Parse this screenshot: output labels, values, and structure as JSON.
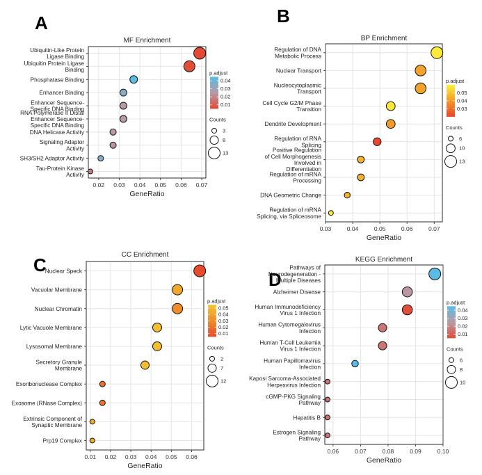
{
  "chart_data": [
    {
      "panel": "A",
      "type": "scatter",
      "title": "MF Enrichment",
      "xlabel": "GeneRatio",
      "ylabel": "",
      "xlim": [
        0.015,
        0.072
      ],
      "xticks": [
        0.02,
        0.03,
        0.04,
        0.05,
        0.06,
        0.07
      ],
      "xtick_labels": [
        "0.02",
        "0.03",
        "0.04",
        "0.05",
        "0.06",
        "0.07"
      ],
      "color_scale": {
        "name": "p.adjust",
        "min": 0.005,
        "max": 0.045,
        "low_color": "#e24a33",
        "mid_color": "#b89aa6",
        "high_color": "#55bde6",
        "ticks": [
          0.04,
          0.03,
          0.02,
          0.01
        ],
        "tick_labels": [
          "0.04",
          "0.03",
          "0.02",
          "0.01"
        ]
      },
      "size_scale": {
        "name": "Counts",
        "values": [
          3,
          8,
          13
        ],
        "labels": [
          "3",
          "8",
          "13"
        ]
      },
      "points": [
        {
          "label": [
            "Ubiquitin-Like Protein",
            "Ligase Binding"
          ],
          "x": 0.069,
          "count": 13,
          "p": 0.005
        },
        {
          "label": [
            "Ubiquitin Protein Ligase",
            "Binding"
          ],
          "x": 0.064,
          "count": 12,
          "p": 0.006
        },
        {
          "label": [
            "Phosphatase Binding"
          ],
          "x": 0.037,
          "count": 7,
          "p": 0.045
        },
        {
          "label": [
            "Enhancer Binding"
          ],
          "x": 0.032,
          "count": 6,
          "p": 0.035
        },
        {
          "label": [
            "Enhancer Sequence-",
            "Specific DNA Binding"
          ],
          "x": 0.032,
          "count": 6,
          "p": 0.025
        },
        {
          "label": [
            "RNA Polymerase II Distal",
            "Enhancer Sequence-",
            "Specific DNA Binding"
          ],
          "x": 0.032,
          "count": 6,
          "p": 0.025
        },
        {
          "label": [
            "DNA Helicase Activity"
          ],
          "x": 0.027,
          "count": 5,
          "p": 0.025
        },
        {
          "label": [
            "Signaling Adaptor",
            "Activity"
          ],
          "x": 0.027,
          "count": 5,
          "p": 0.024
        },
        {
          "label": [
            "SH3/SH2 Adaptor Activity"
          ],
          "x": 0.021,
          "count": 4,
          "p": 0.035
        },
        {
          "label": [
            "Tau-Protein Kinase",
            "Activity"
          ],
          "x": 0.016,
          "count": 3,
          "p": 0.018
        }
      ]
    },
    {
      "panel": "B",
      "type": "scatter",
      "title": "BP Enrichment",
      "xlabel": "GeneRatio",
      "ylabel": "",
      "xlim": [
        0.03,
        0.073
      ],
      "xticks": [
        0.03,
        0.04,
        0.05,
        0.06,
        0.07
      ],
      "xtick_labels": [
        "0.03",
        "0.04",
        "0.05",
        "0.06",
        "0.07"
      ],
      "color_scale": {
        "name": "p.adjust",
        "min": 0.02,
        "max": 0.06,
        "low_color": "#e8442c",
        "mid_color": "#f29a2a",
        "high_color": "#fff13a",
        "ticks": [
          0.05,
          0.04,
          0.03
        ],
        "tick_labels": [
          "0.05",
          "0.04",
          "0.03"
        ]
      },
      "size_scale": {
        "name": "Counts",
        "values": [
          6,
          10,
          13
        ],
        "labels": [
          "6",
          "10",
          "13"
        ]
      },
      "points": [
        {
          "label": [
            "Regulation of DNA",
            "Metabolic Process"
          ],
          "x": 0.071,
          "count": 13,
          "p": 0.058
        },
        {
          "label": [
            "Nuclear Transport"
          ],
          "x": 0.065,
          "count": 12,
          "p": 0.042
        },
        {
          "label": [
            "Nucleocytoplasmic",
            "Transport"
          ],
          "x": 0.065,
          "count": 12,
          "p": 0.042
        },
        {
          "label": [
            "Cell Cycle G2/M Phase",
            "Transition"
          ],
          "x": 0.054,
          "count": 10,
          "p": 0.058
        },
        {
          "label": [
            "Dendrite Development"
          ],
          "x": 0.054,
          "count": 10,
          "p": 0.04
        },
        {
          "label": [
            "Regulation of RNA",
            "Splicing"
          ],
          "x": 0.049,
          "count": 9,
          "p": 0.021
        },
        {
          "label": [
            "Positive Regulation",
            "of Cell Morphogenesis",
            "Involved in",
            "Differentiation"
          ],
          "x": 0.043,
          "count": 8,
          "p": 0.045
        },
        {
          "label": [
            "Regulation of mRNA",
            "Processing"
          ],
          "x": 0.043,
          "count": 8,
          "p": 0.045
        },
        {
          "label": [
            "DNA Geometric Change"
          ],
          "x": 0.038,
          "count": 7,
          "p": 0.045
        },
        {
          "label": [
            "Regulation of mRNA",
            "Splicing, via Spliceosome"
          ],
          "x": 0.032,
          "count": 6,
          "p": 0.058
        }
      ]
    },
    {
      "panel": "C",
      "type": "scatter",
      "title": "CC Enrichment",
      "xlabel": "GeneRatio",
      "ylabel": "",
      "xlim": [
        0.008,
        0.066
      ],
      "xticks": [
        0.01,
        0.02,
        0.03,
        0.04,
        0.05,
        0.06
      ],
      "xtick_labels": [
        "0.01",
        "0.02",
        "0.03",
        "0.04",
        "0.05",
        "0.06"
      ],
      "color_scale": {
        "name": "p.adjust",
        "min": 0.005,
        "max": 0.055,
        "low_color": "#e84a2e",
        "mid_color": "#f08c2a",
        "high_color": "#f4c431",
        "ticks": [
          0.05,
          0.04,
          0.03,
          0.02,
          0.01
        ],
        "tick_labels": [
          "0.05",
          "0.04",
          "0.03",
          "0.02",
          "0.01"
        ]
      },
      "size_scale": {
        "name": "Counts",
        "values": [
          2,
          7,
          12
        ],
        "labels": [
          "2",
          "7",
          "12"
        ]
      },
      "points": [
        {
          "label": [
            "Nuclear Speck"
          ],
          "x": 0.064,
          "count": 12,
          "p": 0.005
        },
        {
          "label": [
            "Vacuolar Membrane"
          ],
          "x": 0.053,
          "count": 10,
          "p": 0.042
        },
        {
          "label": [
            "Nuclear Chromatin"
          ],
          "x": 0.053,
          "count": 10,
          "p": 0.03
        },
        {
          "label": [
            "Lytic Vacuole Membrane"
          ],
          "x": 0.043,
          "count": 8,
          "p": 0.052
        },
        {
          "label": [
            "Lysosomal Membrane"
          ],
          "x": 0.043,
          "count": 8,
          "p": 0.052
        },
        {
          "label": [
            "Secretory Granule",
            "Membrane"
          ],
          "x": 0.037,
          "count": 7,
          "p": 0.052
        },
        {
          "label": [
            "Exoribonuclease Complex"
          ],
          "x": 0.016,
          "count": 3,
          "p": 0.02
        },
        {
          "label": [
            "Exosome (RNase Complex)"
          ],
          "x": 0.016,
          "count": 3,
          "p": 0.02
        },
        {
          "label": [
            "Extrinsic Component of",
            "Synaptic Membrane"
          ],
          "x": 0.011,
          "count": 2,
          "p": 0.045
        },
        {
          "label": [
            "Prp19 Complex"
          ],
          "x": 0.011,
          "count": 2,
          "p": 0.045
        }
      ]
    },
    {
      "panel": "D",
      "type": "scatter",
      "title": "KEGG Enrichment",
      "xlabel": "GeneRatio",
      "ylabel": "",
      "xlim": [
        0.057,
        0.1
      ],
      "xticks": [
        0.06,
        0.07,
        0.08,
        0.09,
        0.1
      ],
      "xtick_labels": [
        "0.06",
        "0.07",
        "0.08",
        "0.09",
        "0.10"
      ],
      "color_scale": {
        "name": "p.adjust",
        "min": 0.005,
        "max": 0.045,
        "low_color": "#e24a33",
        "mid_color": "#b89aa6",
        "high_color": "#55bde6",
        "ticks": [
          0.04,
          0.03,
          0.02,
          0.01
        ],
        "tick_labels": [
          "0.04",
          "0.03",
          "0.02",
          "0.01"
        ]
      },
      "size_scale": {
        "name": "Counts",
        "values": [
          6,
          8,
          10
        ],
        "labels": [
          "6",
          "8",
          "10"
        ]
      },
      "points": [
        {
          "label": [
            "Pathways of",
            "Neurodegeneration -",
            "Multiple Diseases"
          ],
          "x": 0.097,
          "count": 10,
          "p": 0.044
        },
        {
          "label": [
            "Alzheimer Disease"
          ],
          "x": 0.087,
          "count": 9,
          "p": 0.024
        },
        {
          "label": [
            "Human Immunodeficiency",
            "Virus 1 Infection"
          ],
          "x": 0.087,
          "count": 9,
          "p": 0.006
        },
        {
          "label": [
            "Human Cytomegalovirus",
            "Infection"
          ],
          "x": 0.078,
          "count": 8,
          "p": 0.016
        },
        {
          "label": [
            "Human T-Cell Leukemia",
            "Virus 1 Infection"
          ],
          "x": 0.078,
          "count": 8,
          "p": 0.016
        },
        {
          "label": [
            "Human Papillomavirus",
            "Infection"
          ],
          "x": 0.068,
          "count": 7,
          "p": 0.045
        },
        {
          "label": [
            "Kaposi Sarcoma-Associated",
            "Herpesvirus Infection"
          ],
          "x": 0.058,
          "count": 6,
          "p": 0.016
        },
        {
          "label": [
            "cGMP-PKG Signaling",
            "Pathway"
          ],
          "x": 0.058,
          "count": 6,
          "p": 0.016
        },
        {
          "label": [
            "Hepatitis B"
          ],
          "x": 0.058,
          "count": 6,
          "p": 0.016
        },
        {
          "label": [
            "Estrogen Signaling",
            "Pathway"
          ],
          "x": 0.058,
          "count": 6,
          "p": 0.016
        }
      ]
    }
  ]
}
